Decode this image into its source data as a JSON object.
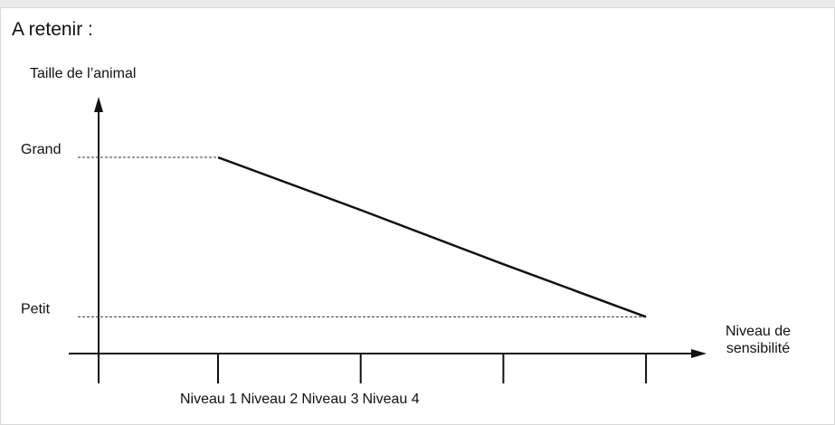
{
  "chart_data": {
    "type": "line",
    "title": "A retenir :",
    "ylabel": "Taille de l’animal",
    "xlabel": "Niveau de sensibilité",
    "categories": [
      "Niveau 1",
      "Niveau 2",
      "Niveau 3",
      "Niveau 4"
    ],
    "values": [
      1,
      0.67,
      0.33,
      0
    ],
    "color": "#111111",
    "ylim": [
      -0.23,
      1.38
    ],
    "yticks": [
      {
        "value": 1,
        "label": "Grand"
      },
      {
        "value": 0,
        "label": "Petit"
      }
    ]
  }
}
